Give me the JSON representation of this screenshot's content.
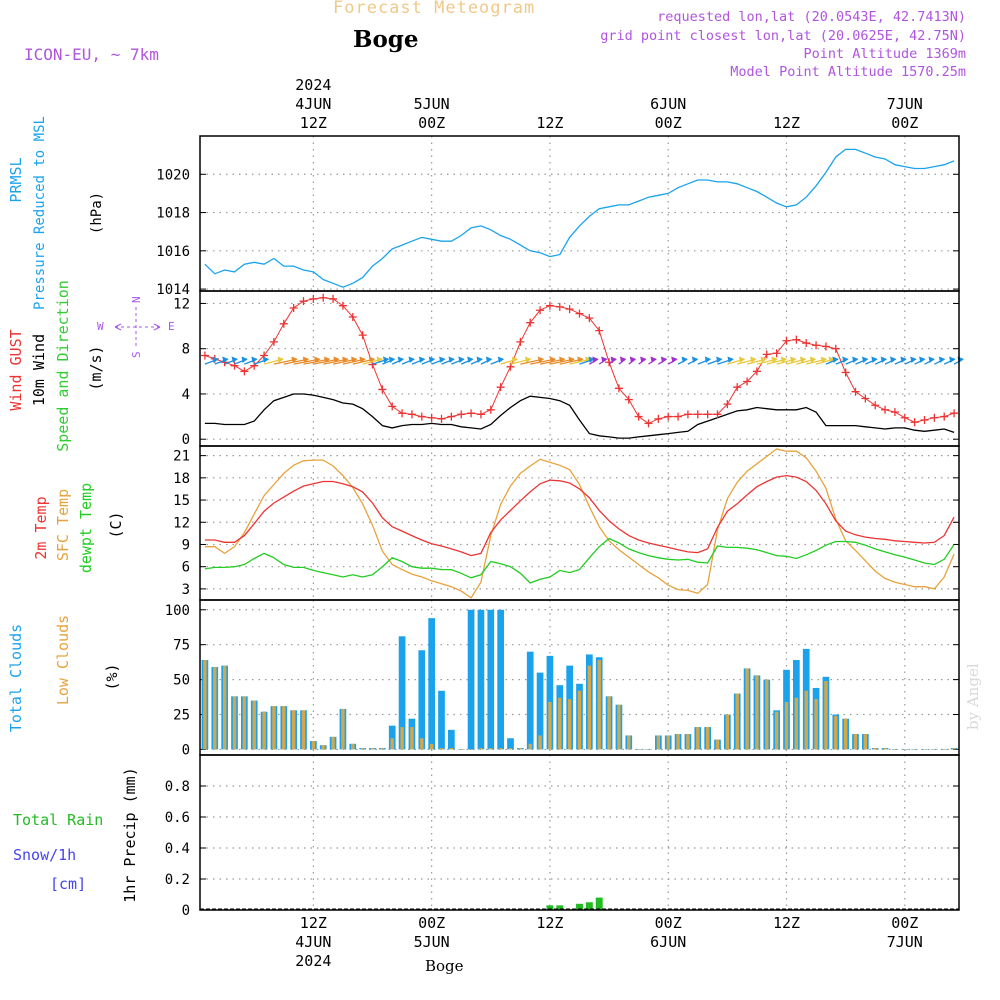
{
  "header": {
    "title": "Forecast Meteogram",
    "location": "Boge",
    "model": "ICON-EU, ~ 7km",
    "requested": "requested lon,lat (20.0543E, 42.7413N)",
    "gridpoint": "grid point closest lon,lat (20.0625E, 42.75N)",
    "altitude": "Point Altitude 1369m",
    "model_altitude": "Model Point Altitude 1570.25m",
    "watermark": "by Angel",
    "footer_location": "Boge"
  },
  "colors": {
    "pressure": "#1aa3ec",
    "gust": "#ee3333",
    "wind": "#000000",
    "dir_text": "#33cc33",
    "compass": "#aa55ee",
    "temp": "#ee3333",
    "sfc": "#e8a23c",
    "dew": "#22cc22",
    "cloud_total": "#1aa3ec",
    "cloud_low": "#d4a84a",
    "rain": "#22bb22",
    "snow": "#4444ee",
    "title": "#f0c98a",
    "meta": "#b055e0"
  },
  "time_axis": {
    "top_year": "2024",
    "bottom_year": "2024",
    "ticks": [
      {
        "hour": 12,
        "time": "12Z",
        "date": "4JUN",
        "year": "2024"
      },
      {
        "hour": 24,
        "time": "00Z",
        "date": "5JUN",
        "year": ""
      },
      {
        "hour": 36,
        "time": "12Z",
        "date": "",
        "year": ""
      },
      {
        "hour": 48,
        "time": "00Z",
        "date": "6JUN",
        "year": ""
      },
      {
        "hour": 60,
        "time": "12Z",
        "date": "",
        "year": ""
      },
      {
        "hour": 72,
        "time": "00Z",
        "date": "7JUN",
        "year": ""
      }
    ]
  },
  "chart_data": [
    {
      "type": "line",
      "panel": "pressure",
      "label_lines": [
        "PRMSL",
        "Pressure Reduced to MSL"
      ],
      "unit": "(hPa)",
      "x_start_hour": 1,
      "x_end_hour": 77,
      "ylim": [
        1013.9,
        1022.0
      ],
      "yticks": [
        1014,
        1016,
        1018,
        1020
      ],
      "series": [
        {
          "name": "PRMSL",
          "x": [
            1,
            2,
            3,
            4,
            5,
            6,
            7,
            8,
            9,
            10,
            11,
            12,
            13,
            14,
            15,
            16,
            17,
            18,
            19,
            20,
            21,
            22,
            23,
            24,
            25,
            26,
            27,
            28,
            29,
            30,
            31,
            32,
            33,
            34,
            35,
            36,
            37,
            38,
            39,
            40,
            41,
            42,
            43,
            44,
            45,
            46,
            47,
            48,
            49,
            50,
            51,
            52,
            53,
            54,
            55,
            56,
            57,
            58,
            59,
            60,
            61,
            62,
            63,
            64,
            65,
            66,
            67,
            68,
            69,
            70,
            71,
            72,
            73,
            74,
            75,
            76,
            77
          ],
          "values": [
            1015.3,
            1014.8,
            1015.0,
            1014.9,
            1015.3,
            1015.4,
            1015.3,
            1015.6,
            1015.2,
            1015.2,
            1015.0,
            1014.9,
            1014.5,
            1014.3,
            1014.1,
            1014.3,
            1014.6,
            1015.2,
            1015.6,
            1016.1,
            1016.3,
            1016.5,
            1016.7,
            1016.6,
            1016.5,
            1016.5,
            1016.8,
            1017.2,
            1017.3,
            1017.1,
            1016.8,
            1016.6,
            1016.3,
            1016.0,
            1015.9,
            1015.7,
            1015.8,
            1016.7,
            1017.3,
            1017.8,
            1018.2,
            1018.3,
            1018.4,
            1018.4,
            1018.6,
            1018.8,
            1018.9,
            1019.0,
            1019.3,
            1019.5,
            1019.7,
            1019.7,
            1019.6,
            1019.6,
            1019.5,
            1019.3,
            1019.1,
            1018.8,
            1018.5,
            1018.3,
            1018.4,
            1018.8,
            1019.4,
            1020.1,
            1020.9,
            1021.3,
            1021.3,
            1021.1,
            1020.9,
            1020.8,
            1020.5,
            1020.4,
            1020.3,
            1020.3,
            1020.4,
            1020.5,
            1020.7
          ]
        }
      ]
    },
    {
      "type": "line",
      "panel": "wind",
      "label_lines": [
        "Wind GUST",
        "10m Wind",
        "Speed and Direction"
      ],
      "unit": "(m/s)",
      "compass": {
        "n": "N",
        "s": "S",
        "w": "W",
        "e": "E"
      },
      "x_start_hour": 1,
      "x_end_hour": 77,
      "ylim": [
        -0.6,
        13.1
      ],
      "yticks": [
        0,
        4,
        8,
        12
      ],
      "series": [
        {
          "name": "Wind GUST",
          "values": [
            7.4,
            7.1,
            6.8,
            6.5,
            6.0,
            6.5,
            7.4,
            8.6,
            10.2,
            11.6,
            12.2,
            12.4,
            12.5,
            12.4,
            11.8,
            10.8,
            9.2,
            6.6,
            4.4,
            2.9,
            2.3,
            2.2,
            2.0,
            1.9,
            1.8,
            2.0,
            2.2,
            2.3,
            2.2,
            2.6,
            4.6,
            6.4,
            8.6,
            10.3,
            11.4,
            11.8,
            11.7,
            11.5,
            11.1,
            10.7,
            9.6,
            6.8,
            4.5,
            3.5,
            2.0,
            1.4,
            1.8,
            2.0,
            2.0,
            2.2,
            2.2,
            2.2,
            2.2,
            3.1,
            4.6,
            5.1,
            6.0,
            7.5,
            7.6,
            8.7,
            8.8,
            8.5,
            8.3,
            8.2,
            8.0,
            5.9,
            4.2,
            3.6,
            3.0,
            2.6,
            2.4,
            1.9,
            1.5,
            1.7,
            1.9,
            2.0,
            2.3
          ]
        },
        {
          "name": "10m Wind",
          "values": [
            1.4,
            1.4,
            1.3,
            1.3,
            1.3,
            1.6,
            2.6,
            3.4,
            3.7,
            4.0,
            4.0,
            3.9,
            3.7,
            3.5,
            3.2,
            3.1,
            2.7,
            2.0,
            1.2,
            1.0,
            1.2,
            1.3,
            1.3,
            1.4,
            1.3,
            1.3,
            1.1,
            1.0,
            0.9,
            1.3,
            2.1,
            2.8,
            3.4,
            3.8,
            3.7,
            3.6,
            3.4,
            3.0,
            1.7,
            0.5,
            0.3,
            0.2,
            0.1,
            0.1,
            0.2,
            0.3,
            0.4,
            0.5,
            0.6,
            0.7,
            1.3,
            1.6,
            1.9,
            2.2,
            2.5,
            2.6,
            2.8,
            2.7,
            2.6,
            2.6,
            2.6,
            2.8,
            2.4,
            1.2,
            1.2,
            1.2,
            1.2,
            1.1,
            1.0,
            0.9,
            1.0,
            1.0,
            0.8,
            0.7,
            0.8,
            0.9,
            0.6
          ]
        }
      ]
    },
    {
      "type": "line",
      "panel": "temperature",
      "label_lines": [
        "2m Temp",
        "SFC Temp",
        "dewpt Temp"
      ],
      "unit": "(C)",
      "x_start_hour": 1,
      "x_end_hour": 77,
      "ylim": [
        1.5,
        22.3
      ],
      "yticks": [
        3,
        6,
        9,
        12,
        15,
        18,
        21
      ],
      "series": [
        {
          "name": "2m Temp",
          "values": [
            9.6,
            9.6,
            9.3,
            9.3,
            10.2,
            11.8,
            13.5,
            14.6,
            15.4,
            16.2,
            16.9,
            17.2,
            17.5,
            17.5,
            17.2,
            16.8,
            16.1,
            14.6,
            12.6,
            11.4,
            10.8,
            10.2,
            9.6,
            9.1,
            8.8,
            8.4,
            8.0,
            7.5,
            7.8,
            10.6,
            12.3,
            13.6,
            14.9,
            16.1,
            17.2,
            17.7,
            17.6,
            17.3,
            16.5,
            15.3,
            13.6,
            12.2,
            11.1,
            10.2,
            9.6,
            9.2,
            8.9,
            8.6,
            8.3,
            8.0,
            7.9,
            8.4,
            11.3,
            13.5,
            14.5,
            15.7,
            16.8,
            17.5,
            18.1,
            18.3,
            18.1,
            17.5,
            16.3,
            14.5,
            12.2,
            10.8,
            10.3,
            10.0,
            9.8,
            9.7,
            9.5,
            9.4,
            9.3,
            9.2,
            9.3,
            10.2,
            12.7
          ]
        },
        {
          "name": "SFC Temp",
          "values": [
            8.7,
            8.7,
            7.8,
            8.7,
            10.6,
            13.1,
            15.6,
            17.1,
            18.6,
            19.7,
            20.3,
            20.4,
            20.4,
            19.6,
            18.3,
            16.7,
            14.5,
            11.6,
            8.1,
            6.3,
            5.6,
            5.0,
            4.6,
            4.1,
            3.7,
            3.3,
            2.7,
            1.8,
            3.9,
            10.2,
            14.4,
            16.9,
            18.6,
            19.6,
            20.5,
            20.1,
            19.7,
            19.1,
            17.1,
            14.1,
            11.4,
            9.5,
            8.3,
            7.3,
            6.3,
            5.3,
            4.5,
            3.5,
            2.9,
            2.8,
            2.4,
            3.6,
            11.0,
            15.2,
            17.4,
            18.9,
            19.9,
            20.9,
            21.9,
            21.6,
            21.6,
            20.7,
            18.9,
            16.6,
            12.4,
            9.5,
            8.2,
            6.8,
            5.4,
            4.4,
            3.9,
            3.6,
            3.3,
            3.3,
            3.0,
            4.6,
            7.7
          ]
        },
        {
          "name": "dewpt Temp",
          "values": [
            5.7,
            5.9,
            5.9,
            6.0,
            6.3,
            7.1,
            7.8,
            7.2,
            6.3,
            5.9,
            5.9,
            5.5,
            5.2,
            4.9,
            4.6,
            4.9,
            4.6,
            4.9,
            6.0,
            7.2,
            6.7,
            6.0,
            5.8,
            5.8,
            5.6,
            5.6,
            5.1,
            4.5,
            4.9,
            6.7,
            6.4,
            6.0,
            5.1,
            3.8,
            4.3,
            4.6,
            5.5,
            5.2,
            5.6,
            7.2,
            8.7,
            9.8,
            9.2,
            8.4,
            7.9,
            7.5,
            7.2,
            7.0,
            6.9,
            7.0,
            6.6,
            6.5,
            8.8,
            8.6,
            8.6,
            8.5,
            8.3,
            7.9,
            7.5,
            7.4,
            7.1,
            7.6,
            8.2,
            8.9,
            9.4,
            9.4,
            9.3,
            8.9,
            8.4,
            8.0,
            7.6,
            7.3,
            6.9,
            6.5,
            6.3,
            7.0,
            9.0
          ]
        }
      ]
    },
    {
      "type": "bar",
      "panel": "clouds",
      "label_lines": [
        "Total Clouds",
        "Low Clouds"
      ],
      "unit": "(%)",
      "x_start_hour": 1,
      "x_end_hour": 77,
      "ylim": [
        -4,
        107
      ],
      "yticks": [
        0,
        25,
        50,
        75,
        100
      ],
      "series": [
        {
          "name": "Total Clouds",
          "values": [
            64,
            59,
            60,
            38,
            38,
            35,
            27,
            31,
            31,
            28,
            28,
            6,
            3,
            9,
            29,
            4,
            1,
            1,
            1,
            17,
            81,
            22,
            71,
            94,
            42,
            14,
            0,
            100,
            100,
            100,
            100,
            8,
            1,
            70,
            55,
            67,
            46,
            60,
            47,
            68,
            66,
            38,
            32,
            10,
            0,
            0,
            10,
            10,
            11,
            11,
            16,
            16,
            7,
            25,
            40,
            58,
            53,
            50,
            28,
            57,
            64,
            72,
            44,
            52,
            25,
            22,
            11,
            11,
            1,
            1,
            0,
            0,
            0,
            0,
            0,
            0,
            1
          ]
        },
        {
          "name": "Low Clouds",
          "values": [
            64,
            59,
            60,
            38,
            38,
            35,
            27,
            31,
            31,
            28,
            28,
            6,
            3,
            9,
            29,
            4,
            1,
            1,
            1,
            8,
            16,
            16,
            8,
            4,
            1,
            1,
            0,
            0,
            1,
            1,
            1,
            1,
            1,
            4,
            10,
            34,
            37,
            36,
            42,
            60,
            64,
            38,
            32,
            10,
            0,
            0,
            10,
            10,
            11,
            11,
            16,
            16,
            7,
            25,
            40,
            58,
            53,
            50,
            27,
            34,
            37,
            42,
            36,
            49,
            24,
            22,
            11,
            11,
            1,
            1,
            0,
            0,
            0,
            0,
            0,
            0,
            1
          ]
        }
      ]
    },
    {
      "type": "bar",
      "panel": "precip",
      "label_lines": [
        "Total  Rain",
        "Snow/1h",
        "[cm]"
      ],
      "ylabel": "1hr Precip (mm)",
      "x_start_hour": 1,
      "x_end_hour": 77,
      "ylim": [
        0,
        1.0
      ],
      "yticks": [
        0,
        0.2,
        0.4,
        0.6,
        0.8
      ],
      "ytick_labels": [
        "0",
        "0.2",
        "0.4",
        "0.6",
        "0.8"
      ],
      "series": [
        {
          "name": "Total Rain",
          "values": [
            0,
            0,
            0,
            0,
            0,
            0,
            0,
            0,
            0,
            0,
            0,
            0,
            0,
            0,
            0,
            0,
            0,
            0,
            0,
            0,
            0,
            0,
            0,
            0,
            0,
            0,
            0,
            0,
            0,
            0,
            0,
            0,
            0,
            0,
            0,
            0.03,
            0.03,
            0,
            0.04,
            0.05,
            0.08,
            0,
            0,
            0,
            0,
            0,
            0,
            0,
            0,
            0,
            0,
            0,
            0,
            0,
            0,
            0,
            0,
            0,
            0,
            0,
            0,
            0,
            0,
            0,
            0,
            0,
            0,
            0,
            0,
            0,
            0,
            0,
            0,
            0,
            0,
            0,
            0
          ]
        }
      ]
    }
  ]
}
